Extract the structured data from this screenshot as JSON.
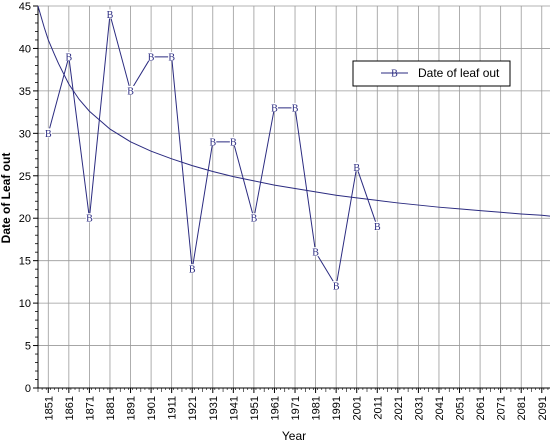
{
  "chart_data": {
    "type": "line",
    "xlabel": "Year",
    "ylabel": "Date of Leaf out",
    "xlim": [
      1846,
      2095
    ],
    "ylim": [
      0,
      45
    ],
    "x_ticks": [
      1851,
      1861,
      1871,
      1881,
      1891,
      1901,
      1911,
      1921,
      1931,
      1941,
      1951,
      1961,
      1971,
      1981,
      1991,
      2001,
      2011,
      2021,
      2031,
      2041,
      2051,
      2061,
      2071,
      2081,
      2091
    ],
    "y_ticks": [
      0,
      5,
      10,
      15,
      20,
      25,
      30,
      35,
      40,
      45
    ],
    "grid": true,
    "legend_position": "top-right",
    "series": [
      {
        "name": "Date of leaf out",
        "marker": "B",
        "color": "#2b2b80",
        "x": [
          1851,
          1861,
          1871,
          1881,
          1891,
          1901,
          1911,
          1921,
          1931,
          1941,
          1951,
          1961,
          1971,
          1981,
          1991,
          2001,
          2011
        ],
        "y": [
          30,
          39,
          20,
          44,
          35,
          39,
          39,
          14,
          29,
          29,
          20,
          33,
          33,
          16,
          12,
          26,
          19
        ]
      }
    ],
    "trend_curve": {
      "color": "#2b2b80",
      "x": [
        1846,
        1849,
        1851,
        1854,
        1856,
        1861,
        1866,
        1871,
        1881,
        1891,
        1901,
        1911,
        1921,
        1931,
        1941,
        1951,
        1961,
        1971,
        1981,
        1991,
        2001,
        2011,
        2021,
        2031,
        2041,
        2051,
        2061,
        2071,
        2081,
        2091,
        2095
      ],
      "y": [
        45.0,
        42.5,
        41.0,
        39.3,
        38.2,
        35.8,
        34.0,
        32.6,
        30.5,
        29.0,
        27.9,
        27.0,
        26.2,
        25.5,
        24.9,
        24.4,
        23.9,
        23.5,
        23.1,
        22.7,
        22.4,
        22.1,
        21.8,
        21.55,
        21.3,
        21.1,
        20.9,
        20.7,
        20.5,
        20.35,
        20.25
      ]
    }
  }
}
